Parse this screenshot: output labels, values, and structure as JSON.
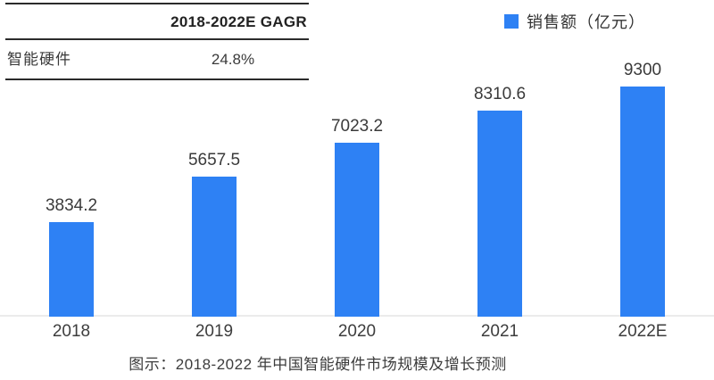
{
  "table": {
    "header": "2018-2022E GAGR",
    "rows": [
      {
        "label": "智能硬件",
        "value": "24.8%"
      }
    ]
  },
  "legend": {
    "label": "销售额（亿元）",
    "color": "#2E81F4"
  },
  "caption": "图示：2018-2022 年中国智能硬件市场规模及增长预测",
  "colors": {
    "bar": "#2E81F4",
    "axis_line": "#ebebeb",
    "text": "#3a3a3a",
    "table_border": "#2b2b2b"
  },
  "chart_data": {
    "type": "bar",
    "categories": [
      "2018",
      "2019",
      "2020",
      "2021",
      "2022E"
    ],
    "values": [
      3834.2,
      5657.5,
      7023.2,
      8310.6,
      9300
    ],
    "value_labels": [
      "3834.2",
      "5657.5",
      "7023.2",
      "8310.6",
      "9300"
    ],
    "series_name": "销售额（亿元）",
    "title": "",
    "xlabel": "",
    "ylabel": "销售额（亿元）",
    "ylim": [
      0,
      9300
    ],
    "grid": false,
    "legend_position": "top-right",
    "bar_color": "#2E81F4"
  }
}
